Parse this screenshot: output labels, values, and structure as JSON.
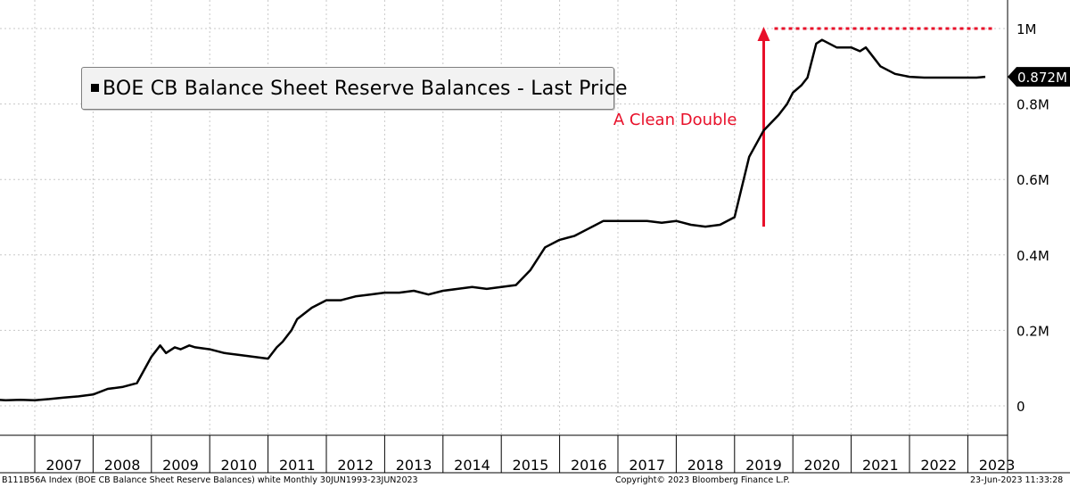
{
  "chart_data": {
    "type": "line",
    "series": [
      {
        "name": "BOE CB Balance Sheet Reserve Balances - Last Price",
        "x": [
          2006.0,
          2006.25,
          2006.5,
          2006.75,
          2007.0,
          2007.25,
          2007.5,
          2007.75,
          2008.0,
          2008.25,
          2008.5,
          2008.75,
          2009.0,
          2009.15,
          2009.25,
          2009.4,
          2009.5,
          2009.65,
          2009.75,
          2010.0,
          2010.25,
          2010.5,
          2010.75,
          2011.0,
          2011.15,
          2011.25,
          2011.4,
          2011.5,
          2011.75,
          2012.0,
          2012.25,
          2012.5,
          2012.75,
          2013.0,
          2013.25,
          2013.5,
          2013.75,
          2014.0,
          2014.25,
          2014.5,
          2014.75,
          2015.0,
          2015.25,
          2015.5,
          2015.75,
          2016.0,
          2016.25,
          2016.5,
          2016.75,
          2017.0,
          2017.25,
          2017.5,
          2017.75,
          2018.0,
          2018.25,
          2018.5,
          2018.75,
          2019.0,
          2019.25,
          2019.5,
          2019.75,
          2019.9,
          2020.0,
          2020.15,
          2020.25,
          2020.4,
          2020.5,
          2020.75,
          2021.0,
          2021.15,
          2021.25,
          2021.4,
          2021.5,
          2021.75,
          2022.0,
          2022.25,
          2022.5,
          2022.75,
          2023.0,
          2023.15,
          2023.3
        ],
        "values": [
          0.02,
          0.017,
          0.015,
          0.016,
          0.015,
          0.018,
          0.022,
          0.025,
          0.03,
          0.045,
          0.05,
          0.06,
          0.13,
          0.16,
          0.14,
          0.155,
          0.15,
          0.16,
          0.155,
          0.15,
          0.14,
          0.135,
          0.13,
          0.125,
          0.155,
          0.17,
          0.2,
          0.23,
          0.26,
          0.28,
          0.28,
          0.29,
          0.295,
          0.3,
          0.3,
          0.305,
          0.295,
          0.305,
          0.31,
          0.315,
          0.31,
          0.315,
          0.32,
          0.36,
          0.42,
          0.44,
          0.45,
          0.47,
          0.49,
          0.49,
          0.49,
          0.49,
          0.485,
          0.49,
          0.48,
          0.475,
          0.48,
          0.5,
          0.66,
          0.73,
          0.77,
          0.8,
          0.83,
          0.85,
          0.87,
          0.96,
          0.97,
          0.95,
          0.95,
          0.94,
          0.95,
          0.92,
          0.9,
          0.88,
          0.872,
          0.87,
          0.87,
          0.87,
          0.87,
          0.87,
          0.872
        ]
      }
    ],
    "x_tick_labels": [
      "2007",
      "2008",
      "2009",
      "2010",
      "2011",
      "2012",
      "2013",
      "2014",
      "2015",
      "2016",
      "2017",
      "2018",
      "2019",
      "2020",
      "2021",
      "2022",
      "2023"
    ],
    "y_tick_labels": [
      "1M",
      "0.8M",
      "0.6M",
      "0.4M",
      "0.2M",
      "0"
    ],
    "y_ticks": [
      1.0,
      0.8,
      0.6,
      0.4,
      0.2,
      0.0
    ],
    "ylim": [
      0,
      1.0
    ],
    "xlim": [
      2006.0,
      2023.4
    ],
    "last_value_label": "0.872M",
    "last_value": 0.872,
    "annotation": {
      "text": "A Clean Double",
      "arrow_x": 2019.5,
      "arrow_from": 0.475,
      "arrow_to": 1.0,
      "dotted_line_y": 1.0,
      "dotted_line_from_x": 2019.5,
      "dotted_line_to_x": 2023.3,
      "color": "#e8102a"
    },
    "grid": true,
    "line_color": "#000000",
    "grid_color": "#c8c8c8"
  },
  "legend": {
    "label": "BOE CB Balance Sheet Reserve Balances - Last Price"
  },
  "footer": {
    "left": "B111B56A Index (BOE CB Balance Sheet Reserve Balances) white  Monthly 30JUN1993-23JUN2023",
    "center": "Copyright© 2023 Bloomberg Finance L.P.",
    "right": "23-Jun-2023 11:33:28"
  }
}
